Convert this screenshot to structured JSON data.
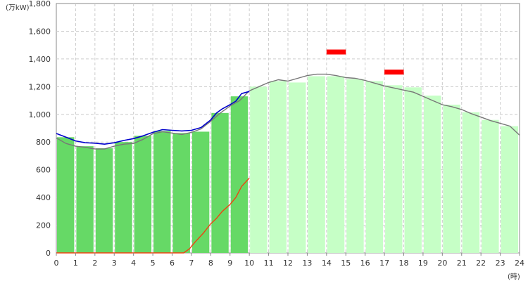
{
  "chart_data": {
    "type": "bar",
    "units": {
      "y": "(万kW)",
      "x": "(時)"
    },
    "x_ticks": [
      "0",
      "1",
      "2",
      "3",
      "4",
      "5",
      "6",
      "7",
      "8",
      "9",
      "10",
      "11",
      "12",
      "13",
      "14",
      "15",
      "16",
      "17",
      "18",
      "19",
      "20",
      "21",
      "22",
      "23",
      "24"
    ],
    "y_ticks": [
      "0",
      "200",
      "400",
      "600",
      "800",
      "1,000",
      "1,200",
      "1,400",
      "1,600",
      "1,800"
    ],
    "ylim": [
      0,
      1800
    ],
    "xlim": [
      0,
      24
    ],
    "grid": true,
    "series": [
      {
        "key": "actual",
        "values": [
          835,
          770,
          755,
          800,
          845,
          880,
          865,
          875,
          1010,
          1130
        ]
      },
      {
        "key": "forecast",
        "values": [
          null,
          null,
          null,
          null,
          null,
          null,
          null,
          null,
          null,
          null,
          1200,
          1240,
          1230,
          1275,
          1275,
          1255,
          1240,
          1210,
          1195,
          1135,
          1070,
          1015,
          960,
          915
        ]
      },
      {
        "key": "demand_line",
        "points": [
          [
            0,
            862
          ],
          [
            0.5,
            835
          ],
          [
            1,
            808
          ],
          [
            1.5,
            795
          ],
          [
            2,
            792
          ],
          [
            2.5,
            785
          ],
          [
            3,
            795
          ],
          [
            3.5,
            812
          ],
          [
            4,
            825
          ],
          [
            4.5,
            845
          ],
          [
            5,
            870
          ],
          [
            5.5,
            890
          ],
          [
            6,
            885
          ],
          [
            6.5,
            880
          ],
          [
            7,
            885
          ],
          [
            7.5,
            905
          ],
          [
            8,
            960
          ],
          [
            8.3,
            1010
          ],
          [
            8.6,
            1040
          ],
          [
            9,
            1070
          ],
          [
            9.3,
            1095
          ],
          [
            9.6,
            1150
          ],
          [
            10,
            1165
          ]
        ]
      },
      {
        "key": "forecast_line",
        "points": [
          [
            0,
            830
          ],
          [
            0.5,
            790
          ],
          [
            1,
            770
          ],
          [
            1.5,
            762
          ],
          [
            2,
            750
          ],
          [
            2.5,
            750
          ],
          [
            3,
            770
          ],
          [
            3.5,
            785
          ],
          [
            4,
            790
          ],
          [
            4.5,
            820
          ],
          [
            5,
            860
          ],
          [
            5.5,
            875
          ],
          [
            6,
            865
          ],
          [
            6.5,
            855
          ],
          [
            7,
            870
          ],
          [
            7.5,
            895
          ],
          [
            8,
            950
          ],
          [
            8.5,
            1010
          ],
          [
            9,
            1060
          ],
          [
            9.5,
            1100
          ],
          [
            10,
            1170
          ],
          [
            10.5,
            1200
          ],
          [
            11,
            1230
          ],
          [
            11.5,
            1250
          ],
          [
            12,
            1240
          ],
          [
            12.5,
            1260
          ],
          [
            13,
            1280
          ],
          [
            13.5,
            1290
          ],
          [
            14,
            1290
          ],
          [
            14.5,
            1280
          ],
          [
            15,
            1265
          ],
          [
            15.5,
            1260
          ],
          [
            16,
            1245
          ],
          [
            16.5,
            1225
          ],
          [
            17,
            1205
          ],
          [
            17.5,
            1190
          ],
          [
            18,
            1175
          ],
          [
            18.5,
            1160
          ],
          [
            19,
            1130
          ],
          [
            19.5,
            1100
          ],
          [
            20,
            1070
          ],
          [
            20.5,
            1055
          ],
          [
            21,
            1035
          ],
          [
            21.5,
            1005
          ],
          [
            22,
            980
          ],
          [
            22.5,
            955
          ],
          [
            23,
            935
          ],
          [
            23.5,
            915
          ],
          [
            24,
            850
          ]
        ]
      },
      {
        "key": "solar_line",
        "points": [
          [
            0,
            0
          ],
          [
            6.6,
            0
          ],
          [
            6.9,
            30
          ],
          [
            7.2,
            80
          ],
          [
            7.6,
            140
          ],
          [
            8,
            210
          ],
          [
            8.3,
            250
          ],
          [
            8.6,
            300
          ],
          [
            9,
            350
          ],
          [
            9.3,
            400
          ],
          [
            9.6,
            480
          ],
          [
            9.8,
            510
          ],
          [
            10,
            540
          ]
        ]
      }
    ],
    "peak_markers": [
      {
        "x_start": 14,
        "x_end": 15,
        "value": 1450
      },
      {
        "x_start": 17,
        "x_end": 18,
        "value": 1305
      }
    ],
    "colors": {
      "actual_bar": "#66d966",
      "forecast_bar": "#c6ffc6",
      "demand_line": "#0000cc",
      "forecast_line": "#777777",
      "solar_line": "#ee4411",
      "peak_marker": "#ff0000",
      "grid": "#cccccc",
      "axis": "#888888"
    }
  }
}
